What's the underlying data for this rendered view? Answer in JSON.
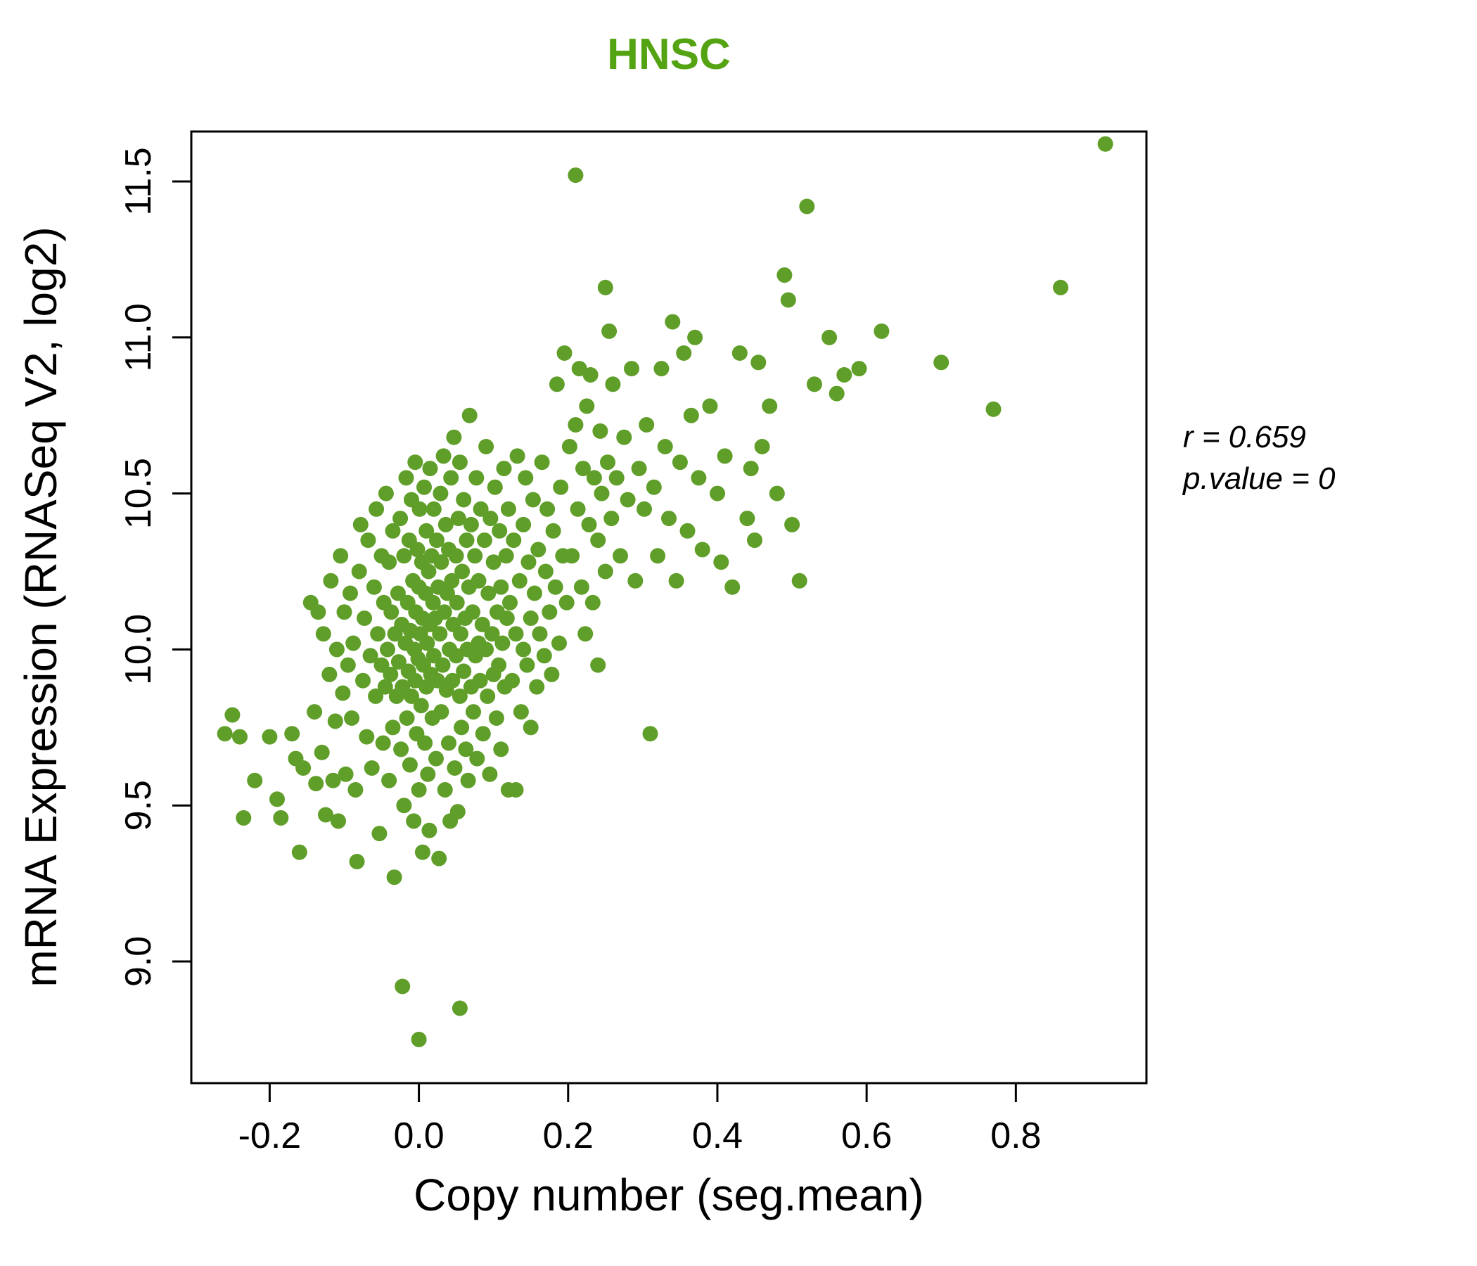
{
  "title": "HNSC",
  "annotation": {
    "r_label": "r = 0.659",
    "p_label": "p.value = 0"
  },
  "colors": {
    "title": "#54a313",
    "point": "#5f9e28"
  },
  "chart_data": {
    "type": "scatter",
    "title": "HNSC",
    "xlabel": "Copy number (seg.mean)",
    "ylabel": "mRNA Expression (RNASeq V2, log2)",
    "xlim": [
      -0.305,
      0.975
    ],
    "ylim": [
      8.61,
      11.66
    ],
    "xticks": [
      -0.2,
      0.0,
      0.2,
      0.4,
      0.6,
      0.8
    ],
    "xtick_labels": [
      "-0.2",
      "0.0",
      "0.2",
      "0.4",
      "0.6",
      "0.8"
    ],
    "yticks": [
      9.0,
      9.5,
      10.0,
      10.5,
      11.0,
      11.5
    ],
    "ytick_labels": [
      "9.0",
      "9.5",
      "10.0",
      "10.5",
      "11.0",
      "11.5"
    ],
    "r": 0.659,
    "p_value": 0,
    "legend": "none",
    "grid": false,
    "points": [
      [
        -0.26,
        9.73
      ],
      [
        -0.25,
        9.79
      ],
      [
        -0.24,
        9.72
      ],
      [
        -0.235,
        9.46
      ],
      [
        -0.22,
        9.58
      ],
      [
        -0.2,
        9.72
      ],
      [
        -0.19,
        9.52
      ],
      [
        -0.185,
        9.46
      ],
      [
        -0.17,
        9.73
      ],
      [
        -0.165,
        9.65
      ],
      [
        -0.16,
        9.35
      ],
      [
        -0.155,
        9.62
      ],
      [
        -0.145,
        10.15
      ],
      [
        -0.14,
        9.8
      ],
      [
        -0.138,
        9.57
      ],
      [
        -0.135,
        10.12
      ],
      [
        -0.13,
        9.67
      ],
      [
        -0.128,
        10.05
      ],
      [
        -0.125,
        9.47
      ],
      [
        -0.12,
        9.92
      ],
      [
        -0.118,
        10.22
      ],
      [
        -0.115,
        9.58
      ],
      [
        -0.112,
        9.77
      ],
      [
        -0.11,
        10.0
      ],
      [
        -0.108,
        9.45
      ],
      [
        -0.105,
        10.3
      ],
      [
        -0.102,
        9.86
      ],
      [
        -0.1,
        10.12
      ],
      [
        -0.098,
        9.6
      ],
      [
        -0.095,
        9.95
      ],
      [
        -0.092,
        10.18
      ],
      [
        -0.09,
        9.78
      ],
      [
        -0.088,
        10.02
      ],
      [
        -0.085,
        9.55
      ],
      [
        -0.083,
        9.32
      ],
      [
        -0.08,
        10.25
      ],
      [
        -0.078,
        10.4
      ],
      [
        -0.075,
        9.9
      ],
      [
        -0.073,
        10.1
      ],
      [
        -0.07,
        9.72
      ],
      [
        -0.068,
        10.35
      ],
      [
        -0.065,
        9.98
      ],
      [
        -0.063,
        9.62
      ],
      [
        -0.06,
        10.2
      ],
      [
        -0.058,
        9.85
      ],
      [
        -0.057,
        10.45
      ],
      [
        -0.055,
        10.05
      ],
      [
        -0.053,
        9.41
      ],
      [
        -0.05,
        9.95
      ],
      [
        -0.05,
        10.3
      ],
      [
        -0.048,
        9.7
      ],
      [
        -0.047,
        10.15
      ],
      [
        -0.045,
        9.88
      ],
      [
        -0.044,
        10.5
      ],
      [
        -0.042,
        10.0
      ],
      [
        -0.04,
        9.58
      ],
      [
        -0.04,
        10.28
      ],
      [
        -0.038,
        9.92
      ],
      [
        -0.037,
        10.12
      ],
      [
        -0.035,
        9.75
      ],
      [
        -0.035,
        10.38
      ],
      [
        -0.033,
        9.27
      ],
      [
        -0.032,
        10.05
      ],
      [
        -0.03,
        9.85
      ],
      [
        -0.022,
        8.92
      ],
      [
        0.0,
        8.75
      ],
      [
        0.055,
        8.85
      ],
      [
        -0.028,
        10.18
      ],
      [
        -0.027,
        9.96
      ],
      [
        -0.025,
        10.42
      ],
      [
        -0.024,
        9.68
      ],
      [
        -0.023,
        10.08
      ],
      [
        -0.022,
        9.88
      ],
      [
        -0.02,
        10.3
      ],
      [
        -0.02,
        9.5
      ],
      [
        -0.018,
        10.02
      ],
      [
        -0.017,
        10.55
      ],
      [
        -0.016,
        9.78
      ],
      [
        -0.015,
        10.15
      ],
      [
        -0.014,
        9.93
      ],
      [
        -0.013,
        10.35
      ],
      [
        -0.012,
        9.63
      ],
      [
        -0.011,
        10.06
      ],
      [
        -0.01,
        9.85
      ],
      [
        -0.01,
        10.48
      ],
      [
        -0.008,
        10.22
      ],
      [
        -0.007,
        9.45
      ],
      [
        -0.006,
        10.0
      ],
      [
        -0.005,
        9.9
      ],
      [
        -0.005,
        10.6
      ],
      [
        -0.004,
        10.12
      ],
      [
        -0.003,
        9.73
      ],
      [
        -0.002,
        10.32
      ],
      [
        -0.001,
        9.97
      ],
      [
        0.0,
        10.2
      ],
      [
        0.0,
        9.55
      ],
      [
        0.001,
        10.45
      ],
      [
        0.002,
        10.05
      ],
      [
        0.003,
        9.82
      ],
      [
        0.004,
        10.28
      ],
      [
        0.005,
        9.35
      ],
      [
        0.005,
        10.1
      ],
      [
        0.006,
        9.95
      ],
      [
        0.007,
        10.52
      ],
      [
        0.008,
        9.7
      ],
      [
        0.009,
        10.18
      ],
      [
        0.01,
        9.88
      ],
      [
        0.01,
        10.38
      ],
      [
        0.011,
        10.02
      ],
      [
        0.012,
        9.6
      ],
      [
        0.013,
        10.25
      ],
      [
        0.014,
        9.42
      ],
      [
        0.015,
        10.08
      ],
      [
        0.015,
        10.58
      ],
      [
        0.016,
        9.92
      ],
      [
        0.017,
        10.3
      ],
      [
        0.018,
        9.78
      ],
      [
        0.019,
        10.15
      ],
      [
        0.02,
        9.98
      ],
      [
        0.02,
        10.45
      ],
      [
        0.022,
        10.1
      ],
      [
        0.023,
        9.65
      ],
      [
        0.024,
        10.35
      ],
      [
        0.025,
        9.9
      ],
      [
        0.026,
        10.2
      ],
      [
        0.027,
        9.33
      ],
      [
        0.028,
        10.05
      ],
      [
        0.029,
        10.5
      ],
      [
        0.03,
        9.8
      ],
      [
        0.03,
        10.28
      ],
      [
        0.032,
        9.95
      ],
      [
        0.033,
        10.62
      ],
      [
        0.034,
        10.12
      ],
      [
        0.035,
        9.55
      ],
      [
        0.036,
        10.4
      ],
      [
        0.037,
        9.87
      ],
      [
        0.038,
        10.18
      ],
      [
        0.04,
        9.7
      ],
      [
        0.04,
        10.32
      ],
      [
        0.041,
        10.0
      ],
      [
        0.042,
        9.45
      ],
      [
        0.043,
        10.55
      ],
      [
        0.044,
        10.22
      ],
      [
        0.045,
        9.9
      ],
      [
        0.046,
        10.08
      ],
      [
        0.047,
        10.68
      ],
      [
        0.048,
        9.62
      ],
      [
        0.05,
        10.3
      ],
      [
        0.05,
        9.98
      ],
      [
        0.051,
        10.15
      ],
      [
        0.052,
        9.48
      ],
      [
        0.053,
        10.42
      ],
      [
        0.055,
        9.85
      ],
      [
        0.055,
        10.6
      ],
      [
        0.056,
        10.05
      ],
      [
        0.057,
        9.75
      ],
      [
        0.058,
        10.25
      ],
      [
        0.06,
        9.93
      ],
      [
        0.06,
        10.48
      ],
      [
        0.062,
        10.1
      ],
      [
        0.063,
        9.68
      ],
      [
        0.064,
        10.35
      ],
      [
        0.065,
        10.0
      ],
      [
        0.066,
        9.58
      ],
      [
        0.067,
        10.2
      ],
      [
        0.068,
        10.75
      ],
      [
        0.07,
        9.88
      ],
      [
        0.07,
        10.4
      ],
      [
        0.072,
        10.12
      ],
      [
        0.073,
        9.8
      ],
      [
        0.075,
        10.3
      ],
      [
        0.076,
        9.98
      ],
      [
        0.077,
        10.55
      ],
      [
        0.078,
        9.65
      ],
      [
        0.08,
        10.22
      ],
      [
        0.08,
        10.02
      ],
      [
        0.082,
        9.9
      ],
      [
        0.083,
        10.45
      ],
      [
        0.085,
        10.08
      ],
      [
        0.086,
        9.73
      ],
      [
        0.088,
        10.35
      ],
      [
        0.09,
        10.0
      ],
      [
        0.09,
        10.65
      ],
      [
        0.092,
        9.85
      ],
      [
        0.093,
        10.18
      ],
      [
        0.095,
        9.6
      ],
      [
        0.096,
        10.42
      ],
      [
        0.098,
        10.05
      ],
      [
        0.1,
        9.92
      ],
      [
        0.1,
        10.28
      ],
      [
        0.102,
        10.52
      ],
      [
        0.104,
        9.78
      ],
      [
        0.105,
        10.12
      ],
      [
        0.107,
        9.95
      ],
      [
        0.108,
        10.38
      ],
      [
        0.11,
        10.2
      ],
      [
        0.11,
        9.68
      ],
      [
        0.112,
        10.02
      ],
      [
        0.114,
        10.58
      ],
      [
        0.115,
        9.88
      ],
      [
        0.117,
        10.3
      ],
      [
        0.118,
        10.1
      ],
      [
        0.12,
        9.55
      ],
      [
        0.12,
        10.45
      ],
      [
        0.122,
        10.15
      ],
      [
        0.125,
        9.9
      ],
      [
        0.127,
        10.35
      ],
      [
        0.13,
        10.05
      ],
      [
        0.13,
        9.55
      ],
      [
        0.132,
        10.62
      ],
      [
        0.135,
        10.22
      ],
      [
        0.137,
        9.8
      ],
      [
        0.14,
        10.4
      ],
      [
        0.14,
        10.0
      ],
      [
        0.143,
        10.55
      ],
      [
        0.145,
        9.95
      ],
      [
        0.147,
        10.28
      ],
      [
        0.15,
        10.1
      ],
      [
        0.15,
        9.75
      ],
      [
        0.153,
        10.48
      ],
      [
        0.155,
        10.18
      ],
      [
        0.158,
        9.88
      ],
      [
        0.16,
        10.32
      ],
      [
        0.162,
        10.05
      ],
      [
        0.165,
        10.6
      ],
      [
        0.168,
        9.98
      ],
      [
        0.17,
        10.25
      ],
      [
        0.172,
        10.45
      ],
      [
        0.175,
        10.12
      ],
      [
        0.178,
        9.92
      ],
      [
        0.18,
        10.38
      ],
      [
        0.183,
        10.2
      ],
      [
        0.185,
        10.85
      ],
      [
        0.188,
        10.02
      ],
      [
        0.19,
        10.52
      ],
      [
        0.193,
        10.3
      ],
      [
        0.195,
        10.95
      ],
      [
        0.198,
        10.15
      ],
      [
        0.202,
        10.65
      ],
      [
        0.205,
        10.3
      ],
      [
        0.21,
        11.52
      ],
      [
        0.21,
        10.72
      ],
      [
        0.213,
        10.45
      ],
      [
        0.215,
        10.9
      ],
      [
        0.218,
        10.2
      ],
      [
        0.22,
        10.58
      ],
      [
        0.223,
        10.05
      ],
      [
        0.225,
        10.78
      ],
      [
        0.228,
        10.4
      ],
      [
        0.23,
        10.88
      ],
      [
        0.233,
        10.15
      ],
      [
        0.235,
        10.55
      ],
      [
        0.24,
        10.35
      ],
      [
        0.24,
        9.95
      ],
      [
        0.243,
        10.7
      ],
      [
        0.245,
        10.5
      ],
      [
        0.25,
        11.16
      ],
      [
        0.25,
        10.25
      ],
      [
        0.253,
        10.6
      ],
      [
        0.255,
        11.02
      ],
      [
        0.258,
        10.42
      ],
      [
        0.26,
        10.85
      ],
      [
        0.265,
        10.55
      ],
      [
        0.27,
        10.3
      ],
      [
        0.275,
        10.68
      ],
      [
        0.28,
        10.48
      ],
      [
        0.285,
        10.9
      ],
      [
        0.29,
        10.22
      ],
      [
        0.295,
        10.58
      ],
      [
        0.302,
        10.45
      ],
      [
        0.305,
        10.72
      ],
      [
        0.31,
        9.73
      ],
      [
        0.315,
        10.52
      ],
      [
        0.32,
        10.3
      ],
      [
        0.325,
        10.9
      ],
      [
        0.33,
        10.65
      ],
      [
        0.335,
        10.42
      ],
      [
        0.34,
        11.05
      ],
      [
        0.345,
        10.22
      ],
      [
        0.35,
        10.6
      ],
      [
        0.355,
        10.95
      ],
      [
        0.36,
        10.38
      ],
      [
        0.365,
        10.75
      ],
      [
        0.37,
        11.0
      ],
      [
        0.375,
        10.55
      ],
      [
        0.38,
        10.32
      ],
      [
        0.39,
        10.78
      ],
      [
        0.4,
        10.5
      ],
      [
        0.405,
        10.28
      ],
      [
        0.41,
        10.62
      ],
      [
        0.42,
        10.2
      ],
      [
        0.43,
        10.95
      ],
      [
        0.44,
        10.42
      ],
      [
        0.445,
        10.58
      ],
      [
        0.45,
        10.35
      ],
      [
        0.455,
        10.92
      ],
      [
        0.46,
        10.65
      ],
      [
        0.47,
        10.78
      ],
      [
        0.48,
        10.5
      ],
      [
        0.49,
        11.2
      ],
      [
        0.495,
        11.12
      ],
      [
        0.5,
        10.4
      ],
      [
        0.51,
        10.22
      ],
      [
        0.52,
        11.42
      ],
      [
        0.53,
        10.85
      ],
      [
        0.55,
        11.0
      ],
      [
        0.56,
        10.82
      ],
      [
        0.57,
        10.88
      ],
      [
        0.59,
        10.9
      ],
      [
        0.62,
        11.02
      ],
      [
        0.7,
        10.92
      ],
      [
        0.77,
        10.77
      ],
      [
        0.86,
        11.16
      ],
      [
        0.92,
        11.62
      ]
    ]
  }
}
